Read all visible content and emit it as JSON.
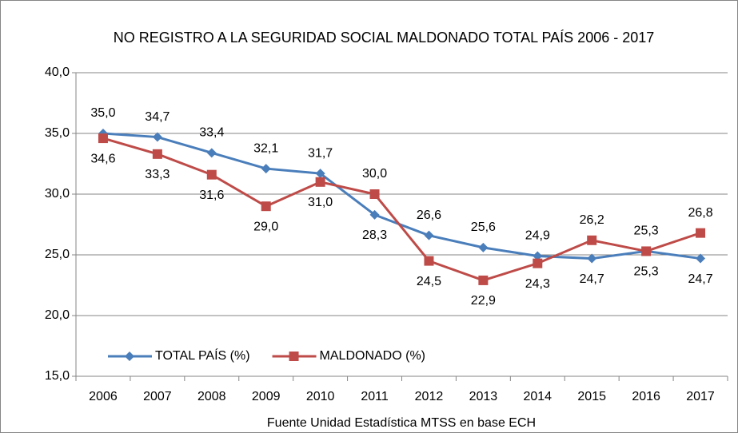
{
  "chart_data": {
    "type": "line",
    "title": "NO REGISTRO A LA SEGURIDAD SOCIAL MALDONADO TOTAL PAÍS 2006 - 2017",
    "x_label": "Fuente Unidad Estadística MTSS en base ECH",
    "categories": [
      "2006",
      "2007",
      "2008",
      "2009",
      "2010",
      "2011",
      "2012",
      "2013",
      "2014",
      "2015",
      "2016",
      "2017"
    ],
    "series": [
      {
        "name": "TOTAL PAÍS (%)",
        "color": "#4a7ebb",
        "marker": "diamond",
        "values": [
          35.0,
          34.7,
          33.4,
          32.1,
          31.7,
          28.3,
          26.6,
          25.6,
          24.9,
          24.7,
          25.3,
          24.7
        ],
        "value_labels": [
          "35,0",
          "34,7",
          "33,4",
          "32,1",
          "31,7",
          "28,3",
          "26,6",
          "25,6",
          "24,9",
          "24,7",
          "25,3",
          "24,7"
        ]
      },
      {
        "name": "MALDONADO (%)",
        "color": "#be4b48",
        "marker": "square",
        "values": [
          34.6,
          33.3,
          31.6,
          29.0,
          31.0,
          30.0,
          24.5,
          22.9,
          24.3,
          26.2,
          25.3,
          26.8
        ],
        "value_labels": [
          "34,6",
          "33,3",
          "31,6",
          "29,0",
          "31,0",
          "30,0",
          "24,5",
          "22,9",
          "24,3",
          "26,2",
          "25,3",
          "26,8"
        ]
      }
    ],
    "ylim": [
      15,
      40
    ],
    "yticks": [
      {
        "value": 15,
        "label": "15,0"
      },
      {
        "value": 20,
        "label": "20,0"
      },
      {
        "value": 25,
        "label": "25,0"
      },
      {
        "value": 30,
        "label": "30,0"
      },
      {
        "value": 35,
        "label": "35,0"
      },
      {
        "value": 40,
        "label": "40,0"
      }
    ],
    "grid": true,
    "legend": "lower left"
  }
}
